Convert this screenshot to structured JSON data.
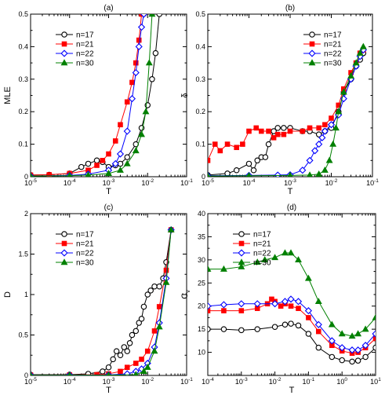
{
  "figure": {
    "panels": [
      "(a)",
      "(b)",
      "(c)",
      "(d)"
    ]
  },
  "legend_labels": [
    "n=17",
    "n=21",
    "n=22",
    "n=30"
  ],
  "colors": {
    "n17": "#000000",
    "n21": "#ff0000",
    "n22": "#0000ff",
    "n30": "#008000"
  },
  "chart_data": [
    {
      "type": "line",
      "panel": "(a)",
      "xlabel": "T",
      "ylabel": "MLE",
      "xscale": "log",
      "xlim": [
        1e-05,
        0.1
      ],
      "ylim": [
        0,
        0.5
      ],
      "xticks": [
        "10-5",
        "10-4",
        "10-3",
        "10-2",
        "10-1"
      ],
      "yticks": [
        "0",
        "0.1",
        "0.2",
        "0.3",
        "0.4",
        "0.5"
      ],
      "legend": "top-left",
      "series": [
        {
          "name": "n=17",
          "marker": "circle-open",
          "x": [
            1e-05,
            3e-05,
            0.0001,
            0.0002,
            0.0003,
            0.0005,
            0.0007,
            0.001,
            0.0015,
            0.002,
            0.003,
            0.005,
            0.007,
            0.01,
            0.013,
            0.016,
            0.02
          ],
          "y": [
            0.005,
            0.006,
            0.01,
            0.03,
            0.04,
            0.05,
            0.045,
            0.03,
            0.035,
            0.04,
            0.06,
            0.1,
            0.15,
            0.22,
            0.3,
            0.38,
            0.5
          ]
        },
        {
          "name": "n=21",
          "marker": "square-filled",
          "x": [
            1e-05,
            3e-05,
            0.0001,
            0.0003,
            0.0005,
            0.0007,
            0.001,
            0.0015,
            0.002,
            0.003,
            0.004,
            0.005,
            0.006,
            0.007
          ],
          "y": [
            0.005,
            0.006,
            0.01,
            0.02,
            0.035,
            0.05,
            0.07,
            0.11,
            0.16,
            0.23,
            0.29,
            0.35,
            0.42,
            0.5
          ]
        },
        {
          "name": "n=22",
          "marker": "diamond-open",
          "x": [
            1e-05,
            0.0001,
            0.0003,
            0.001,
            0.0015,
            0.002,
            0.003,
            0.004,
            0.005,
            0.006,
            0.007,
            0.008
          ],
          "y": [
            0.002,
            0.004,
            0.008,
            0.02,
            0.04,
            0.07,
            0.14,
            0.24,
            0.32,
            0.4,
            0.46,
            0.5
          ]
        },
        {
          "name": "n=30",
          "marker": "triangle-filled",
          "x": [
            1e-05,
            0.0001,
            0.0003,
            0.001,
            0.002,
            0.003,
            0.005,
            0.007,
            0.009,
            0.011,
            0.013
          ],
          "y": [
            0.002,
            0.003,
            0.005,
            0.01,
            0.02,
            0.04,
            0.08,
            0.13,
            0.2,
            0.35,
            0.5
          ]
        }
      ]
    },
    {
      "type": "line",
      "panel": "(b)",
      "xlabel": "T",
      "ylabel": "δ",
      "xscale": "log",
      "xlim": [
        1e-05,
        0.1
      ],
      "ylim": [
        0,
        0.5
      ],
      "xticks": [
        "10-5",
        "10-4",
        "10-3",
        "10-2",
        "10-1"
      ],
      "yticks": [
        "0",
        "0.1",
        "0.2",
        "0.3",
        "0.4",
        "0.5"
      ],
      "legend": "top-right",
      "series": [
        {
          "name": "n=17",
          "marker": "circle-open",
          "x": [
            1e-05,
            3e-05,
            5e-05,
            0.0001,
            0.00013,
            0.00016,
            0.0002,
            0.00025,
            0.0003,
            0.0004,
            0.0005,
            0.0007,
            0.001,
            0.002,
            0.003,
            0.005,
            0.007,
            0.01,
            0.015,
            0.02,
            0.03,
            0.04,
            0.05,
            0.06
          ],
          "y": [
            0.005,
            0.01,
            0.02,
            0.04,
            0.02,
            0.05,
            0.06,
            0.06,
            0.1,
            0.14,
            0.15,
            0.15,
            0.15,
            0.14,
            0.14,
            0.13,
            0.14,
            0.15,
            0.2,
            0.26,
            0.3,
            0.34,
            0.36,
            0.38
          ]
        },
        {
          "name": "n=21",
          "marker": "square-filled",
          "x": [
            1e-05,
            1.5e-05,
            2e-05,
            3e-05,
            5e-05,
            7e-05,
            0.0001,
            0.00015,
            0.0002,
            0.0003,
            0.0004,
            0.0005,
            0.0007,
            0.001,
            0.002,
            0.003,
            0.005,
            0.007,
            0.01,
            0.015,
            0.02,
            0.03,
            0.04,
            0.05,
            0.06
          ],
          "y": [
            0.05,
            0.1,
            0.08,
            0.1,
            0.09,
            0.1,
            0.14,
            0.15,
            0.14,
            0.14,
            0.12,
            0.13,
            0.13,
            0.14,
            0.14,
            0.15,
            0.15,
            0.16,
            0.18,
            0.22,
            0.27,
            0.32,
            0.35,
            0.38,
            0.39
          ]
        },
        {
          "name": "n=22",
          "marker": "diamond-open",
          "x": [
            1e-05,
            0.0001,
            0.0005,
            0.001,
            0.002,
            0.003,
            0.004,
            0.005,
            0.006,
            0.007,
            0.01,
            0.015,
            0.02,
            0.03,
            0.04,
            0.05,
            0.06
          ],
          "y": [
            0.003,
            0.004,
            0.005,
            0.006,
            0.02,
            0.05,
            0.08,
            0.1,
            0.12,
            0.14,
            0.16,
            0.19,
            0.24,
            0.3,
            0.34,
            0.37,
            0.39
          ]
        },
        {
          "name": "n=30",
          "marker": "triangle-filled",
          "x": [
            1e-05,
            0.0001,
            0.001,
            0.003,
            0.005,
            0.007,
            0.009,
            0.011,
            0.013,
            0.015,
            0.02,
            0.03,
            0.04,
            0.05,
            0.06
          ],
          "y": [
            0.002,
            0.003,
            0.004,
            0.005,
            0.008,
            0.02,
            0.05,
            0.1,
            0.15,
            0.2,
            0.26,
            0.31,
            0.35,
            0.38,
            0.4
          ]
        }
      ]
    },
    {
      "type": "line",
      "panel": "(c)",
      "xlabel": "T",
      "ylabel": "D",
      "xscale": "log",
      "xlim": [
        1e-05,
        0.1
      ],
      "ylim": [
        0,
        2
      ],
      "xticks": [
        "10-5",
        "10-4",
        "10-3",
        "10-2",
        "10-1"
      ],
      "yticks": [
        "0",
        "0.5",
        "1",
        "1.5",
        "2"
      ],
      "legend": "top-left",
      "series": [
        {
          "name": "n=17",
          "marker": "circle-open",
          "x": [
            1e-05,
            0.0001,
            0.0003,
            0.0007,
            0.001,
            0.0013,
            0.0016,
            0.002,
            0.0025,
            0.003,
            0.0035,
            0.004,
            0.005,
            0.006,
            0.007,
            0.008,
            0.01,
            0.012,
            0.015,
            0.02,
            0.025,
            0.03,
            0.04
          ],
          "y": [
            0.01,
            0.01,
            0.02,
            0.05,
            0.1,
            0.2,
            0.3,
            0.25,
            0.35,
            0.3,
            0.4,
            0.5,
            0.55,
            0.65,
            0.7,
            0.85,
            1.0,
            1.05,
            1.1,
            1.1,
            1.2,
            1.4,
            1.8
          ]
        },
        {
          "name": "n=21",
          "marker": "square-filled",
          "x": [
            1e-05,
            0.0001,
            0.0005,
            0.001,
            0.002,
            0.003,
            0.005,
            0.007,
            0.01,
            0.015,
            0.02,
            0.03,
            0.04
          ],
          "y": [
            0.005,
            0.006,
            0.01,
            0.02,
            0.05,
            0.1,
            0.15,
            0.2,
            0.3,
            0.55,
            0.85,
            1.3,
            1.8
          ]
        },
        {
          "name": "n=22",
          "marker": "diamond-open",
          "x": [
            1e-05,
            0.0001,
            0.001,
            0.003,
            0.005,
            0.007,
            0.01,
            0.015,
            0.02,
            0.03,
            0.04
          ],
          "y": [
            0.003,
            0.004,
            0.006,
            0.02,
            0.05,
            0.08,
            0.15,
            0.35,
            0.65,
            1.2,
            1.8
          ]
        },
        {
          "name": "n=30",
          "marker": "triangle-filled",
          "x": [
            1e-05,
            0.0001,
            0.001,
            0.005,
            0.008,
            0.01,
            0.015,
            0.02,
            0.03,
            0.04
          ],
          "y": [
            0.002,
            0.003,
            0.004,
            0.01,
            0.05,
            0.1,
            0.3,
            0.6,
            1.15,
            1.8
          ]
        }
      ]
    },
    {
      "type": "line",
      "panel": "(d)",
      "xlabel": "T",
      "ylabel": "Cv",
      "xscale": "log",
      "xlim": [
        0.0001,
        10
      ],
      "ylim": [
        5,
        40
      ],
      "xticks": [
        "10-4",
        "10-3",
        "10-2",
        "10-1",
        "100",
        "101"
      ],
      "yticks": [
        "10",
        "15",
        "20",
        "25",
        "30",
        "35",
        "40"
      ],
      "legend": "top-left",
      "series": [
        {
          "name": "n=17",
          "marker": "circle-open",
          "x": [
            0.0001,
            0.0003,
            0.001,
            0.003,
            0.01,
            0.02,
            0.03,
            0.05,
            0.1,
            0.2,
            0.5,
            1,
            2,
            3,
            5,
            10
          ],
          "y": [
            15,
            15,
            14.8,
            15,
            15.5,
            16,
            16.2,
            15.8,
            14,
            11,
            9,
            8.3,
            8,
            8.2,
            9,
            11
          ]
        },
        {
          "name": "n=21",
          "marker": "square-filled",
          "x": [
            0.0001,
            0.0003,
            0.001,
            0.003,
            0.006,
            0.008,
            0.01,
            0.015,
            0.02,
            0.03,
            0.05,
            0.1,
            0.2,
            0.5,
            1,
            2,
            3,
            5,
            10
          ],
          "y": [
            19,
            19,
            19,
            19.5,
            20.5,
            21.5,
            21,
            20,
            20.5,
            20,
            19.5,
            17.5,
            14.5,
            11.5,
            10.3,
            9.8,
            10,
            11,
            13
          ]
        },
        {
          "name": "n=22",
          "marker": "diamond-open",
          "x": [
            0.0001,
            0.0003,
            0.001,
            0.003,
            0.01,
            0.02,
            0.03,
            0.05,
            0.1,
            0.2,
            0.5,
            1,
            2,
            3,
            5,
            10
          ],
          "y": [
            20,
            20.3,
            20.5,
            20.5,
            20.5,
            21,
            21.5,
            21,
            19,
            16,
            12.5,
            11,
            10.5,
            10.5,
            11.5,
            14
          ]
        },
        {
          "name": "n=30",
          "marker": "triangle-filled",
          "x": [
            0.0001,
            0.0003,
            0.001,
            0.003,
            0.005,
            0.01,
            0.02,
            0.03,
            0.05,
            0.1,
            0.2,
            0.5,
            1,
            2,
            3,
            5,
            10
          ],
          "y": [
            28,
            28,
            28.5,
            29.5,
            30,
            30.5,
            31.5,
            31.5,
            30,
            26,
            21,
            16,
            14,
            13.5,
            14,
            15,
            17.5
          ]
        }
      ]
    }
  ]
}
